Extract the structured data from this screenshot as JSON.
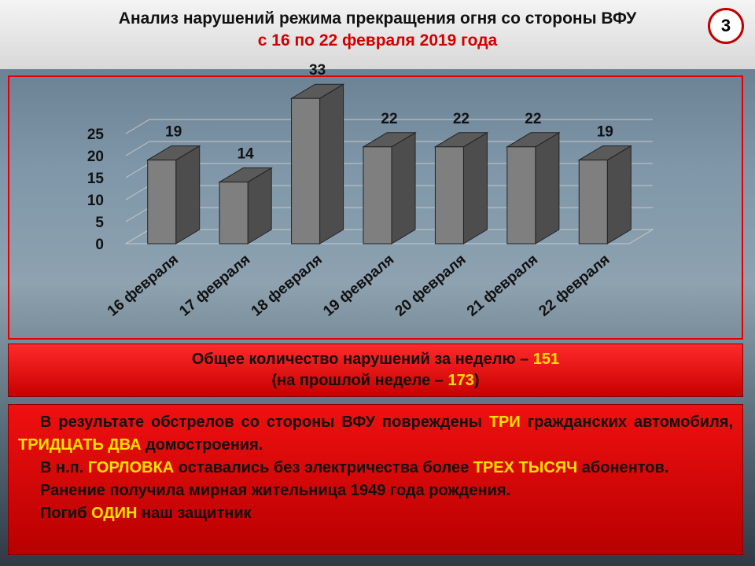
{
  "header": {
    "title": "Анализ нарушений режима прекращения огня со стороны ВФУ",
    "title_dates": "с 16 по 22 февраля 2019 года",
    "slide_number": "3"
  },
  "chart_data": {
    "type": "bar3d",
    "categories": [
      "16 февраля",
      "17 февраля",
      "18 февраля",
      "19 февраля",
      "20 февраля",
      "21 февраля",
      "22 февраля"
    ],
    "values": [
      19,
      14,
      33,
      22,
      22,
      22,
      19
    ],
    "color": "#7f7f7f",
    "ylim": [
      0,
      25
    ],
    "yticks": [
      0,
      5,
      10,
      15,
      20,
      25
    ],
    "grid": true
  },
  "summary": {
    "line1": "Общее количество нарушений за неделю –",
    "week_total": "151",
    "line2_start": "(на прошлой неделе –",
    "previous_total": "173",
    "line2_end": ")"
  },
  "details": [
    [
      "В результате обстрелов со стороны ВФУ повреждены ",
      "ТРИ",
      " гражданских автомобиля, ",
      "ТРИДЦАТЬ ДВА",
      " домостроения."
    ],
    [
      "В н.п. ",
      "ГОРЛОВКА",
      " оставались без электричества более ",
      "ТРЕХ ТЫСЯЧ",
      " абонентов."
    ],
    [
      "Ранение получила мирная жительница 1949 года рождения."
    ],
    [
      "Погиб ",
      "ОДИН",
      " наш защитник"
    ]
  ]
}
